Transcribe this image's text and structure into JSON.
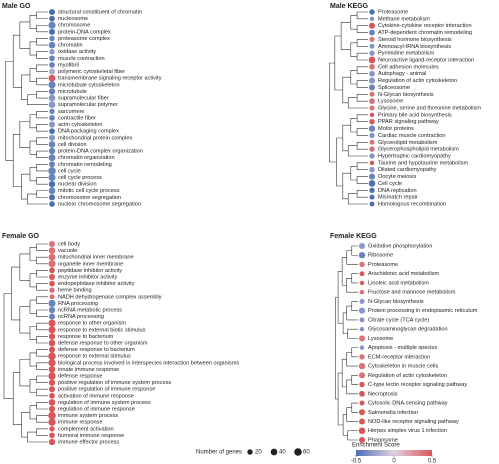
{
  "chart_data": [
    {
      "type": "tree-dot",
      "title": "Male GO",
      "terms": [
        {
          "label": "structural constituent of chromatin",
          "score": -0.5,
          "genes": 30
        },
        {
          "label": "nucleosome",
          "score": -0.5,
          "genes": 25
        },
        {
          "label": "chromosome",
          "score": -0.4,
          "genes": 50
        },
        {
          "label": "protein-DNA complex",
          "score": -0.5,
          "genes": 30
        },
        {
          "label": "proteasome complex",
          "score": -0.4,
          "genes": 20
        },
        {
          "label": "chromatin",
          "score": -0.4,
          "genes": 40
        },
        {
          "label": "oxidase activity",
          "score": -0.3,
          "genes": 20
        },
        {
          "label": "muscle contraction",
          "score": -0.4,
          "genes": 25
        },
        {
          "label": "myofibril",
          "score": -0.4,
          "genes": 25
        },
        {
          "label": "polymeric cytoskeletal fiber",
          "score": -0.2,
          "genes": 30
        },
        {
          "label": "transmembrane signaling receptor activity",
          "score": 0.5,
          "genes": 45
        },
        {
          "label": "microtubule cytoskeleton",
          "score": -0.4,
          "genes": 50
        },
        {
          "label": "microtubule",
          "score": -0.4,
          "genes": 35
        },
        {
          "label": "supramolecular fiber",
          "score": -0.3,
          "genes": 40
        },
        {
          "label": "supramolecular polymer",
          "score": -0.3,
          "genes": 40
        },
        {
          "label": "sarcomere",
          "score": -0.4,
          "genes": 20
        },
        {
          "label": "contractile fiber",
          "score": -0.4,
          "genes": 25
        },
        {
          "label": "actin cytoskeleton",
          "score": -0.3,
          "genes": 30
        },
        {
          "label": "DNA packaging complex",
          "score": -0.5,
          "genes": 25
        },
        {
          "label": "mitochondrial protein complex",
          "score": -0.3,
          "genes": 30
        },
        {
          "label": "cell division",
          "score": -0.4,
          "genes": 40
        },
        {
          "label": "protein-DNA complex organization",
          "score": -0.4,
          "genes": 35
        },
        {
          "label": "chromatin organization",
          "score": -0.4,
          "genes": 45
        },
        {
          "label": "chromatin remodeling",
          "score": -0.4,
          "genes": 30
        },
        {
          "label": "cell cycle",
          "score": -0.4,
          "genes": 60
        },
        {
          "label": "cell cycle process",
          "score": -0.4,
          "genes": 50
        },
        {
          "label": "nuclear division",
          "score": -0.5,
          "genes": 35
        },
        {
          "label": "mitotic cell cycle process",
          "score": -0.4,
          "genes": 40
        },
        {
          "label": "chromosome segregation",
          "score": -0.5,
          "genes": 30
        },
        {
          "label": "nuclear chromosome segregation",
          "score": -0.5,
          "genes": 25
        }
      ]
    },
    {
      "type": "tree-dot",
      "title": "Male KEGG",
      "terms": [
        {
          "label": "Proteasome",
          "score": -0.5,
          "genes": 20
        },
        {
          "label": "Methane metabolism",
          "score": -0.3,
          "genes": 10
        },
        {
          "label": "Cytokine-cytokine receptor interaction",
          "score": 0.5,
          "genes": 30
        },
        {
          "label": "ATP-dependent chromatin remodeling",
          "score": -0.4,
          "genes": 25
        },
        {
          "label": "Steroid hormone biosynthesis",
          "score": 0.4,
          "genes": 15
        },
        {
          "label": "Aminoacyl-tRNA biosynthesis",
          "score": -0.3,
          "genes": 15
        },
        {
          "label": "Pyrimidine metabolism",
          "score": -0.3,
          "genes": 20
        },
        {
          "label": "Neuroactive ligand-receptor interaction",
          "score": 0.5,
          "genes": 40
        },
        {
          "label": "Cell adhesion molecules",
          "score": 0.4,
          "genes": 25
        },
        {
          "label": "Autophagy - animal",
          "score": -0.3,
          "genes": 25
        },
        {
          "label": "Regulation of actin cytoskeleton",
          "score": -0.3,
          "genes": 30
        },
        {
          "label": "Spliceosome",
          "score": -0.4,
          "genes": 30
        },
        {
          "label": "N-Glycan biosynthesis",
          "score": 0.4,
          "genes": 15
        },
        {
          "label": "Lysosome",
          "score": 0.4,
          "genes": 25
        },
        {
          "label": "Glycine, serine and threonine metabolism",
          "score": 0.4,
          "genes": 15
        },
        {
          "label": "Primary bile acid biosynthesis",
          "score": 0.5,
          "genes": 10
        },
        {
          "label": "PPAR signaling pathway",
          "score": 0.5,
          "genes": 20
        },
        {
          "label": "Motor proteins",
          "score": -0.4,
          "genes": 35
        },
        {
          "label": "Cardiac muscle contraction",
          "score": -0.3,
          "genes": 20
        },
        {
          "label": "Glycerolipid metabolism",
          "score": 0.4,
          "genes": 15
        },
        {
          "label": "Glycerophospholipid metabolism",
          "score": 0.4,
          "genes": 20
        },
        {
          "label": "Hypertrophic cardiomyopathy",
          "score": -0.3,
          "genes": 20
        },
        {
          "label": "Taurine and hypotaurine metabolism",
          "score": 0.5,
          "genes": 10
        },
        {
          "label": "Dilated cardiomyopathy",
          "score": -0.3,
          "genes": 20
        },
        {
          "label": "Oocyte meiosis",
          "score": -0.4,
          "genes": 30
        },
        {
          "label": "Cell cycle",
          "score": -0.5,
          "genes": 40
        },
        {
          "label": "DNA replication",
          "score": -0.5,
          "genes": 20
        },
        {
          "label": "Mismatch repair",
          "score": -0.5,
          "genes": 15
        },
        {
          "label": "Homologous recombination",
          "score": -0.5,
          "genes": 15
        }
      ]
    },
    {
      "type": "tree-dot",
      "title": "Female GO",
      "terms": [
        {
          "label": "cell body",
          "score": 0.4,
          "genes": 30
        },
        {
          "label": "vacuole",
          "score": 0.4,
          "genes": 40
        },
        {
          "label": "mitochondrial inner membrane",
          "score": 0.4,
          "genes": 45
        },
        {
          "label": "organelle inner membrane",
          "score": 0.4,
          "genes": 50
        },
        {
          "label": "peptidase inhibitor activity",
          "score": 0.5,
          "genes": 25
        },
        {
          "label": "enzyme inhibitor activity",
          "score": 0.5,
          "genes": 30
        },
        {
          "label": "endopeptidase inhibitor activity",
          "score": 0.5,
          "genes": 25
        },
        {
          "label": "heme binding",
          "score": 0.4,
          "genes": 20
        },
        {
          "label": "NADH dehydrogenase complex assembly",
          "score": 0.4,
          "genes": 15
        },
        {
          "label": "RNA processing",
          "score": -0.4,
          "genes": 50
        },
        {
          "label": "ncRNA metabolic process",
          "score": -0.4,
          "genes": 35
        },
        {
          "label": "ncRNA processing",
          "score": -0.4,
          "genes": 30
        },
        {
          "label": "response to other organism",
          "score": 0.5,
          "genes": 50
        },
        {
          "label": "response to external biotic stimulus",
          "score": 0.5,
          "genes": 50
        },
        {
          "label": "response to bacterium",
          "score": 0.5,
          "genes": 35
        },
        {
          "label": "defense response to other organism",
          "score": 0.5,
          "genes": 40
        },
        {
          "label": "defense response to bacterium",
          "score": 0.5,
          "genes": 30
        },
        {
          "label": "response to external stimulus",
          "score": 0.5,
          "genes": 60
        },
        {
          "label": "biological process involved in interspecies interaction between organisms",
          "score": 0.5,
          "genes": 55
        },
        {
          "label": "innate immune response",
          "score": 0.5,
          "genes": 40
        },
        {
          "label": "defense response",
          "score": 0.5,
          "genes": 55
        },
        {
          "label": "positive regulation of immune system process",
          "score": 0.5,
          "genes": 35
        },
        {
          "label": "positive regulation of immune response",
          "score": 0.5,
          "genes": 30
        },
        {
          "label": "activation of immune response",
          "score": 0.5,
          "genes": 25
        },
        {
          "label": "regulation of immune system process",
          "score": 0.5,
          "genes": 40
        },
        {
          "label": "regulation of immune response",
          "score": 0.5,
          "genes": 35
        },
        {
          "label": "immune system process",
          "score": 0.5,
          "genes": 60
        },
        {
          "label": "immune response",
          "score": 0.5,
          "genes": 55
        },
        {
          "label": "complement activation",
          "score": 0.5,
          "genes": 20
        },
        {
          "label": "humoral immune response",
          "score": 0.5,
          "genes": 25
        },
        {
          "label": "immune effector process",
          "score": 0.5,
          "genes": 35
        }
      ]
    },
    {
      "type": "tree-dot",
      "title": "Female KEGG",
      "terms": [
        {
          "label": "Oxidative phosphorylation",
          "score": -0.3,
          "genes": 30
        },
        {
          "label": "Ribosome",
          "score": -0.4,
          "genes": 35
        },
        {
          "label": "Proteasome",
          "score": 0.4,
          "genes": 20
        },
        {
          "label": "Arachidonic acid metabolism",
          "score": 0.5,
          "genes": 15
        },
        {
          "label": "Linoleic acid metabolism",
          "score": 0.5,
          "genes": 10
        },
        {
          "label": "Fructose and mannose metabolism",
          "score": 0.4,
          "genes": 10
        },
        {
          "label": "N-Glycan biosynthesis",
          "score": -0.3,
          "genes": 15
        },
        {
          "label": "Protein processing in endoplasmic reticulum",
          "score": -0.3,
          "genes": 30
        },
        {
          "label": "Citrate cycle (TCA cycle)",
          "score": -0.3,
          "genes": 15
        },
        {
          "label": "Glycosaminoglycan degradation",
          "score": -0.3,
          "genes": 10
        },
        {
          "label": "Lysosome",
          "score": 0.4,
          "genes": 30
        },
        {
          "label": "Apoptosis - multiple species",
          "score": -0.3,
          "genes": 10
        },
        {
          "label": "ECM-receptor interaction",
          "score": 0.4,
          "genes": 20
        },
        {
          "label": "Cytoskeleton in muscle cells",
          "score": 0.4,
          "genes": 35
        },
        {
          "label": "Regulation of actin cytoskeleton",
          "score": 0.4,
          "genes": 30
        },
        {
          "label": "C-type lectin receptor signaling pathway",
          "score": 0.5,
          "genes": 20
        },
        {
          "label": "Necroptosis",
          "score": 0.5,
          "genes": 25
        },
        {
          "label": "Cytosolic DNA-sensing pathway",
          "score": 0.5,
          "genes": 15
        },
        {
          "label": "Salmonella infection",
          "score": 0.5,
          "genes": 30
        },
        {
          "label": "NOD-like receptor signaling pathway",
          "score": 0.5,
          "genes": 30
        },
        {
          "label": "Herpes simplex virus 1 infection",
          "score": 0.5,
          "genes": 40
        },
        {
          "label": "Phagosome",
          "score": 0.5,
          "genes": 30
        }
      ]
    }
  ],
  "legend": {
    "size_title": "Number of genes",
    "sizes": [
      20,
      40,
      60
    ],
    "color_title": "Enrichment Score",
    "color_ticks": [
      -0.5,
      0,
      0.5
    ],
    "color_low": "#4a6fb5",
    "color_high": "#d9575a"
  }
}
